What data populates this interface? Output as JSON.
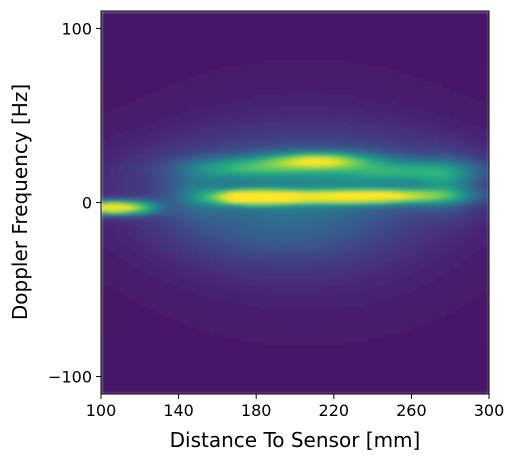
{
  "chart_data": {
    "type": "heatmap",
    "title": "",
    "xlabel": "Distance To Sensor [mm]",
    "ylabel": "Doppler Frequency [Hz]",
    "xlim": [
      100,
      300
    ],
    "ylim": [
      -110,
      110
    ],
    "x_ticks": [
      100,
      140,
      180,
      220,
      260,
      300
    ],
    "y_ticks": [
      100,
      0,
      -100
    ],
    "y_tick_labels": [
      "100",
      "0",
      "−100"
    ],
    "colormap": "viridis",
    "colormap_stops": [
      "#440154",
      "#472d7b",
      "#3b528b",
      "#2c728e",
      "#21918c",
      "#28ae80",
      "#5ec962",
      "#addc30",
      "#fde725"
    ],
    "background_level": 0.06,
    "blobs": [
      {
        "x": 104,
        "y": -3,
        "sx": 9,
        "sy": 2.6,
        "v": 0.95
      },
      {
        "x": 120,
        "y": -3,
        "sx": 8,
        "sy": 2.8,
        "v": 0.45
      },
      {
        "x": 178,
        "y": 3,
        "sx": 14,
        "sy": 2.8,
        "v": 0.86
      },
      {
        "x": 220,
        "y": 3,
        "sx": 30,
        "sy": 2.8,
        "v": 0.58
      },
      {
        "x": 255,
        "y": 4,
        "sx": 24,
        "sy": 3,
        "v": 0.42
      },
      {
        "x": 212,
        "y": 24,
        "sx": 18,
        "sy": 3.2,
        "v": 0.62
      },
      {
        "x": 175,
        "y": 20,
        "sx": 22,
        "sy": 4,
        "v": 0.36
      },
      {
        "x": 255,
        "y": 18,
        "sx": 28,
        "sy": 4.5,
        "v": 0.35
      },
      {
        "x": 278,
        "y": 10,
        "sx": 10,
        "sy": 10,
        "v": 0.22
      },
      {
        "x": 210,
        "y": 13,
        "sx": 60,
        "sy": 16,
        "v": 0.22
      },
      {
        "x": 190,
        "y": -15,
        "sx": 40,
        "sy": 15,
        "v": 0.14
      },
      {
        "x": 205,
        "y": 0,
        "sx": 55,
        "sy": 38,
        "v": 0.1
      },
      {
        "x": 150,
        "y": 5,
        "sx": 10,
        "sy": 10,
        "v": 0.15
      }
    ]
  }
}
